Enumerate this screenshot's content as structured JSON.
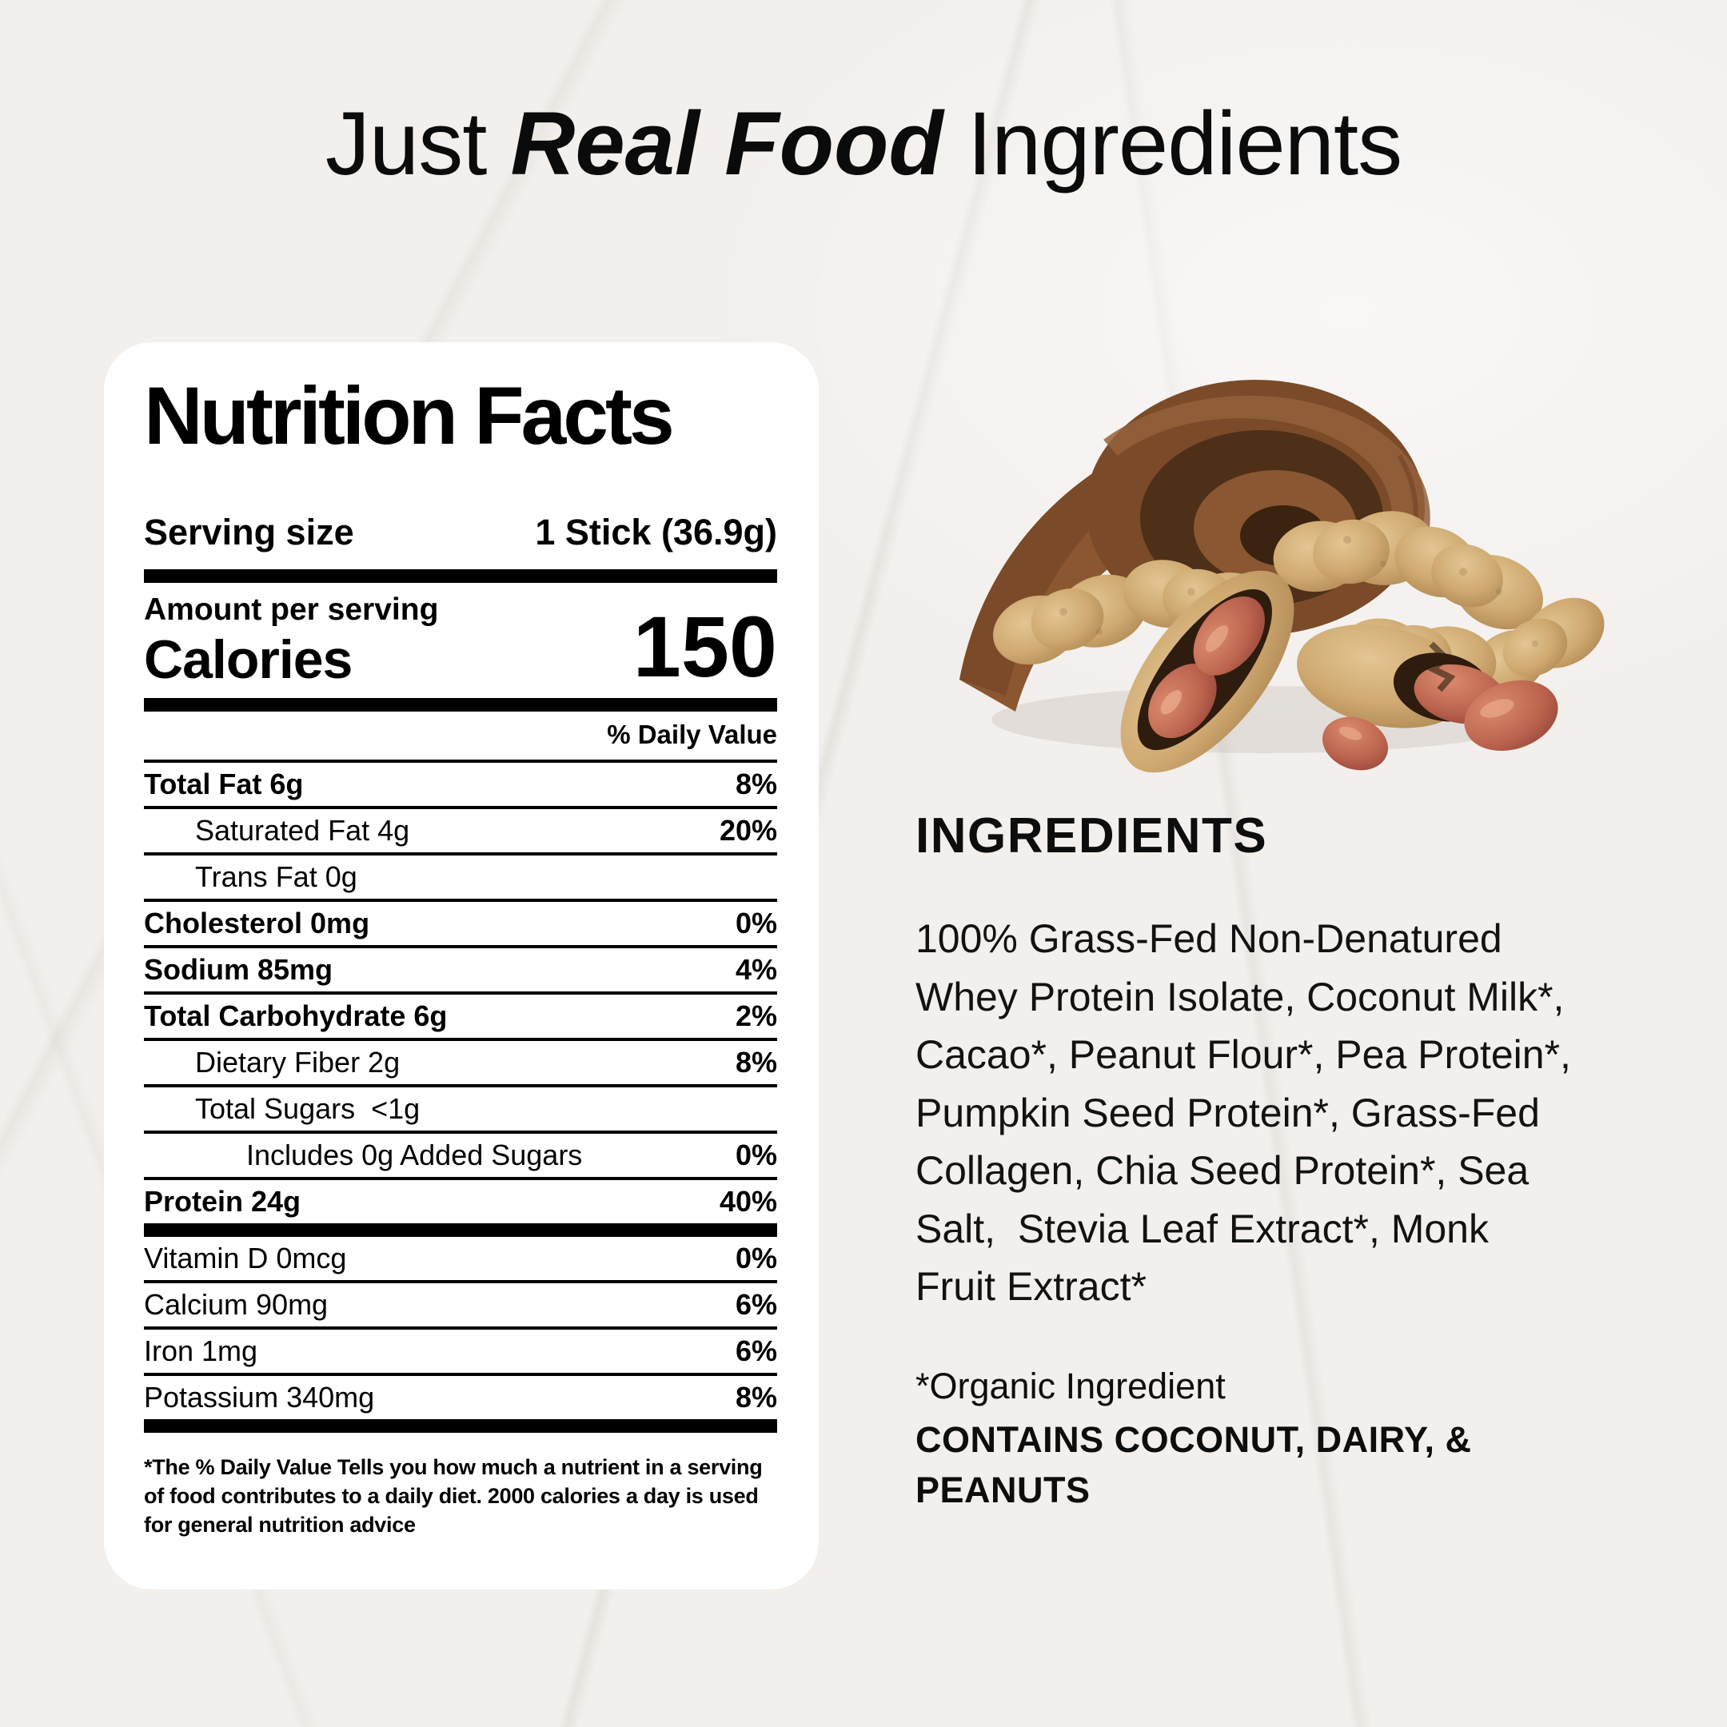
{
  "title": {
    "part1": "Just ",
    "emphasis": "Real Food",
    "part2": " Ingredients"
  },
  "nutrition_label": {
    "heading": "Nutrition Facts",
    "serving_size_label": "Serving size",
    "serving_size_value": "1 Stick (36.9g)",
    "amount_per_serving": "Amount per serving",
    "calories_label": "Calories",
    "calories_value": "150",
    "daily_value_header": "% Daily Value",
    "rows": [
      {
        "label": "Total Fat 6g",
        "value": "8%",
        "style": "bold",
        "indent": 0,
        "thick_after": false
      },
      {
        "label": "Saturated Fat 4g",
        "value": "20%",
        "style": "regular",
        "indent": 1,
        "thick_after": false
      },
      {
        "label": "Trans Fat 0g",
        "value": "",
        "style": "regular",
        "indent": 1,
        "thick_after": false
      },
      {
        "label": "Cholesterol 0mg",
        "value": "0%",
        "style": "bold",
        "indent": 0,
        "thick_after": false
      },
      {
        "label": "Sodium 85mg",
        "value": "4%",
        "style": "bold",
        "indent": 0,
        "thick_after": false
      },
      {
        "label": "Total Carbohydrate 6g",
        "value": "2%",
        "style": "bold",
        "indent": 0,
        "thick_after": false
      },
      {
        "label": "Dietary Fiber 2g",
        "value": "8%",
        "style": "regular",
        "indent": 1,
        "thick_after": false
      },
      {
        "label": "Total Sugars  <1g",
        "value": "",
        "style": "regular",
        "indent": 1,
        "thick_after": false
      },
      {
        "label": "Includes 0g Added Sugars",
        "value": "0%",
        "style": "regular",
        "indent": 2,
        "thick_after": false
      },
      {
        "label": "Protein 24g",
        "value": "40%",
        "style": "bold",
        "indent": 0,
        "thick_after": true
      },
      {
        "label": "Vitamin D 0mcg",
        "value": "0%",
        "style": "regular",
        "indent": 0,
        "thick_after": false
      },
      {
        "label": "Calcium 90mg",
        "value": "6%",
        "style": "regular",
        "indent": 0,
        "thick_after": false
      },
      {
        "label": "Iron 1mg",
        "value": "6%",
        "style": "regular",
        "indent": 0,
        "thick_after": false
      },
      {
        "label": "Potassium 340mg",
        "value": "8%",
        "style": "regular",
        "indent": 0,
        "thick_after": true
      }
    ],
    "footnote": "*The % Daily Value Tells you how much a nutrient in a serving of food contributes to a daily diet. 2000 calories a day is used for general nutrition advice"
  },
  "ingredients": {
    "heading": "INGREDIENTS",
    "body": "100% Grass-Fed Non-Denatured Whey Protein Isolate, Coconut Milk*, Cacao*, Peanut Flour*, Pea Protein*, Pumpkin Seed Protein*, Grass-Fed Collagen, Chia Seed Protein*, Sea Salt,  Stevia Leaf Extract*, Monk Fruit Extract*",
    "organic_note": "*Organic Ingredient",
    "allergen_note": "CONTAINS COCONUT, DAIRY, & PEANUTS"
  },
  "food_image": {
    "description": "chocolate curl with whole and split peanuts in shell"
  },
  "colors": {
    "page_background": "#f2efec",
    "card_background": "#ffffff",
    "text": "#0d0d0d",
    "chocolate": "#7b4a28",
    "peanut_shell": "#c9a568",
    "peanut_kernel": "#b5625c"
  }
}
